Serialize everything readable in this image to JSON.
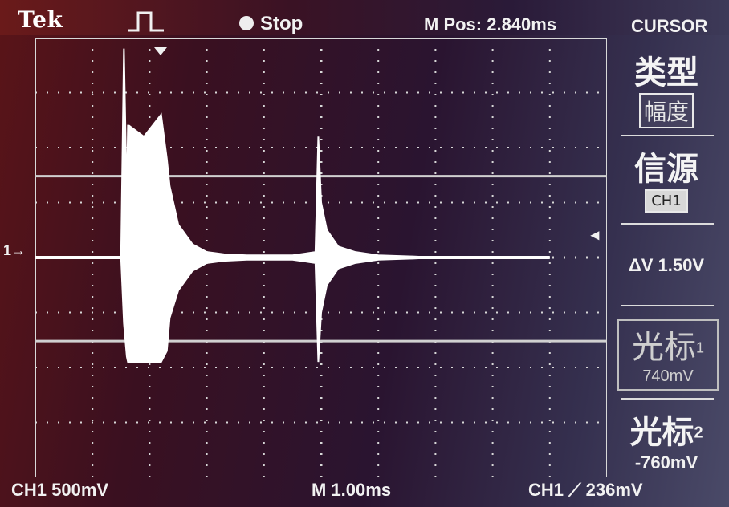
{
  "header": {
    "brand": "Tek",
    "run_state": "Stop",
    "m_pos": "M Pos: 2.840ms",
    "menu_title": "CURSOR"
  },
  "side_menu": {
    "type_label": "类型",
    "type_value": "幅度",
    "source_label": "信源",
    "source_value": "CH1",
    "delta_v": "ΔV 1.50V",
    "cursor1_label": "光标",
    "cursor1_index": "1",
    "cursor1_value": "740mV",
    "cursor2_label": "光标",
    "cursor2_index": "2",
    "cursor2_value": "-760mV"
  },
  "footer": {
    "ch1_scale": "CH1  500mV",
    "timebase": "M 1.00ms",
    "trigger": "CH1 ⟋ 236mV"
  },
  "markers": {
    "channel": "1→",
    "trigger_level": "◂"
  },
  "chart_data": {
    "type": "line",
    "title": "",
    "xlabel": "",
    "ylabel": "",
    "x_unit": "ms",
    "y_unit": "V",
    "x_per_div": 1.0,
    "y_per_div": 0.5,
    "xlim": [
      0,
      10
    ],
    "ylim": [
      -2,
      2
    ],
    "cursors": [
      0.74,
      -0.76
    ],
    "grid": true,
    "series": [
      {
        "x": [
          0,
          1.5,
          1.55,
          1.6,
          1.62,
          1.64,
          1.9,
          2.2,
          2.3,
          2.35,
          2.5,
          2.75,
          3.0,
          3.3,
          3.7,
          4.0,
          4.5,
          4.9,
          4.95,
          5.0,
          5.1,
          5.3,
          5.6,
          6.0,
          6.6,
          7.0,
          9.0
        ],
        "y": [
          0,
          0,
          1.9,
          0.5,
          1.2,
          1.2,
          1.1,
          1.3,
          0.9,
          0.65,
          0.3,
          0.12,
          0.05,
          0.03,
          0.02,
          0.02,
          0.02,
          0.05,
          1.1,
          0.5,
          0.25,
          0.1,
          0.05,
          0.02,
          0.01,
          0.0,
          0.0
        ],
        "y_low": [
          0,
          0,
          -0.6,
          -0.9,
          -0.95,
          -0.95,
          -0.95,
          -0.95,
          -0.85,
          -0.55,
          -0.3,
          -0.12,
          -0.05,
          -0.03,
          -0.02,
          -0.02,
          -0.02,
          -0.05,
          -0.95,
          -0.5,
          -0.25,
          -0.1,
          -0.05,
          -0.02,
          -0.01,
          0.0,
          0.0
        ]
      }
    ]
  },
  "colors": {
    "trace": "#ffffff",
    "grid": "#d8d8d8",
    "cursor": "#d0d0d0"
  }
}
